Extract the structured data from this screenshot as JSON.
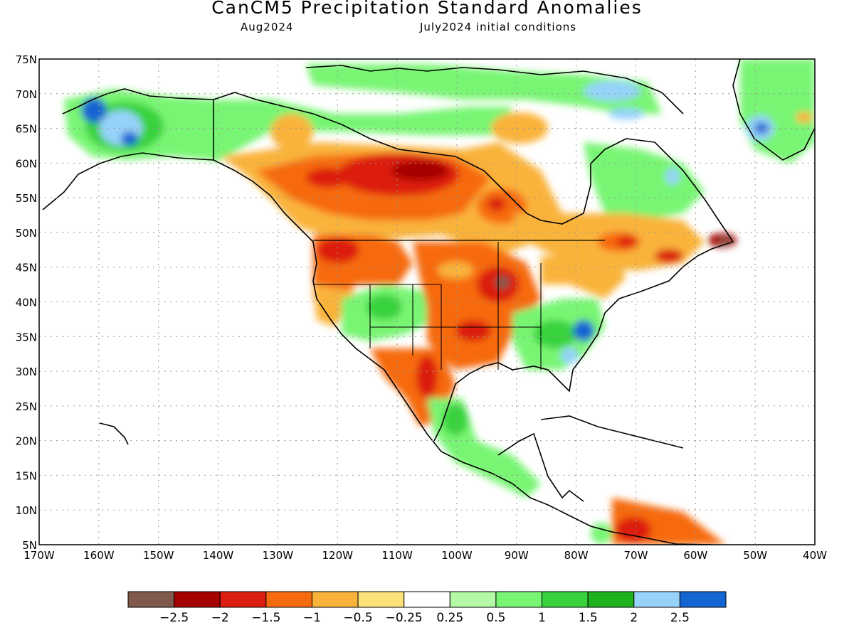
{
  "header": {
    "title": "CanCM5 Precipitation Standard Anomalies",
    "valid": "Aug2024",
    "init": "July2024 initial conditions"
  },
  "map": {
    "lon_range": [
      -170,
      -40
    ],
    "lat_range": [
      5,
      75
    ],
    "x_ticks": [
      {
        "lon": -170,
        "label": "170W"
      },
      {
        "lon": -160,
        "label": "160W"
      },
      {
        "lon": -150,
        "label": "150W"
      },
      {
        "lon": -140,
        "label": "140W"
      },
      {
        "lon": -130,
        "label": "130W"
      },
      {
        "lon": -120,
        "label": "120W"
      },
      {
        "lon": -110,
        "label": "110W"
      },
      {
        "lon": -100,
        "label": "100W"
      },
      {
        "lon": -90,
        "label": "90W"
      },
      {
        "lon": -80,
        "label": "80W"
      },
      {
        "lon": -70,
        "label": "70W"
      },
      {
        "lon": -60,
        "label": "60W"
      },
      {
        "lon": -50,
        "label": "50W"
      },
      {
        "lon": -40,
        "label": "40W"
      }
    ],
    "y_ticks": [
      {
        "lat": 75,
        "label": "75N"
      },
      {
        "lat": 70,
        "label": "70N"
      },
      {
        "lat": 65,
        "label": "65N"
      },
      {
        "lat": 60,
        "label": "60N"
      },
      {
        "lat": 55,
        "label": "55N"
      },
      {
        "lat": 50,
        "label": "50N"
      },
      {
        "lat": 45,
        "label": "45N"
      },
      {
        "lat": 40,
        "label": "40N"
      },
      {
        "lat": 35,
        "label": "35N"
      },
      {
        "lat": 30,
        "label": "30N"
      },
      {
        "lat": 25,
        "label": "25N"
      },
      {
        "lat": 20,
        "label": "20N"
      },
      {
        "lat": 15,
        "label": "15N"
      },
      {
        "lat": 10,
        "label": "10N"
      },
      {
        "lat": 5,
        "label": "5N"
      }
    ],
    "grid": true
  },
  "colorbar": {
    "colors": [
      "#7f5a4c",
      "#a50000",
      "#dc1e10",
      "#f66a10",
      "#f9b33a",
      "#fde27a",
      "#ffffff",
      "#b4f9a5",
      "#78f573",
      "#37d23d",
      "#1eb31e",
      "#96d2fa",
      "#1464d2"
    ],
    "labels": [
      "−2.5",
      "−2",
      "−1.5",
      "−1",
      "−0.5",
      "−0.25",
      "0.25",
      "0.5",
      "1",
      "1.5",
      "2",
      "2.5"
    ]
  }
}
